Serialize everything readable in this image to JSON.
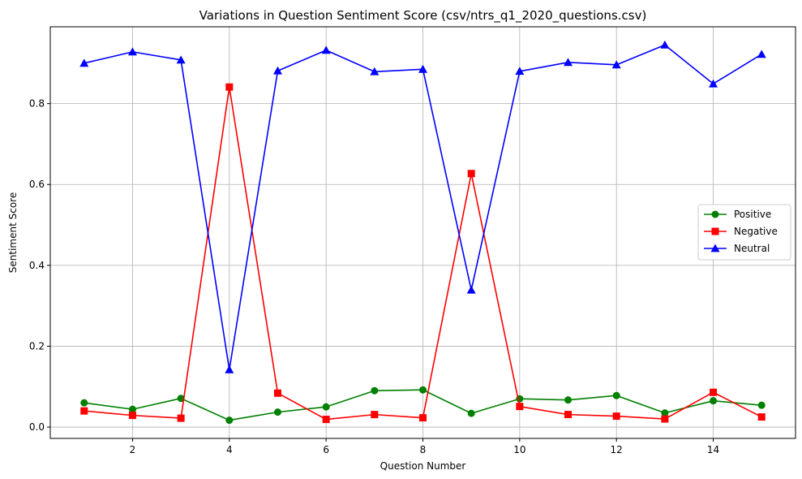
{
  "chart_data": {
    "type": "line",
    "title": "Variations in Question Sentiment Score (csv/ntrs_q1_2020_questions.csv)",
    "xlabel": "Question Number",
    "ylabel": "Sentiment Score",
    "x": [
      1,
      2,
      3,
      4,
      5,
      6,
      7,
      8,
      9,
      10,
      11,
      12,
      13,
      14,
      15
    ],
    "xlim": [
      0.3,
      15.7
    ],
    "ylim": [
      -0.028,
      0.99
    ],
    "xticks": [
      2,
      4,
      6,
      8,
      10,
      12,
      14
    ],
    "xtick_labels": [
      "2",
      "4",
      "6",
      "8",
      "10",
      "12",
      "14"
    ],
    "yticks": [
      0.0,
      0.2,
      0.4,
      0.6,
      0.8
    ],
    "ytick_labels": [
      "0.0",
      "0.2",
      "0.4",
      "0.6",
      "0.8"
    ],
    "grid": true,
    "legend_position": "center-right",
    "series": [
      {
        "name": "Positive",
        "color": "#008000",
        "marker": "circle",
        "values": [
          0.06,
          0.044,
          0.071,
          0.017,
          0.037,
          0.05,
          0.09,
          0.092,
          0.034,
          0.07,
          0.067,
          0.078,
          0.035,
          0.065,
          0.054
        ]
      },
      {
        "name": "Negative",
        "color": "#ff0000",
        "marker": "square",
        "values": [
          0.04,
          0.029,
          0.022,
          0.841,
          0.084,
          0.019,
          0.031,
          0.023,
          0.627,
          0.051,
          0.031,
          0.027,
          0.02,
          0.086,
          0.025
        ]
      },
      {
        "name": "Neutral",
        "color": "#0000ff",
        "marker": "triangle",
        "values": [
          0.9,
          0.928,
          0.908,
          0.142,
          0.881,
          0.932,
          0.879,
          0.885,
          0.339,
          0.88,
          0.902,
          0.896,
          0.945,
          0.849,
          0.922
        ]
      }
    ]
  }
}
